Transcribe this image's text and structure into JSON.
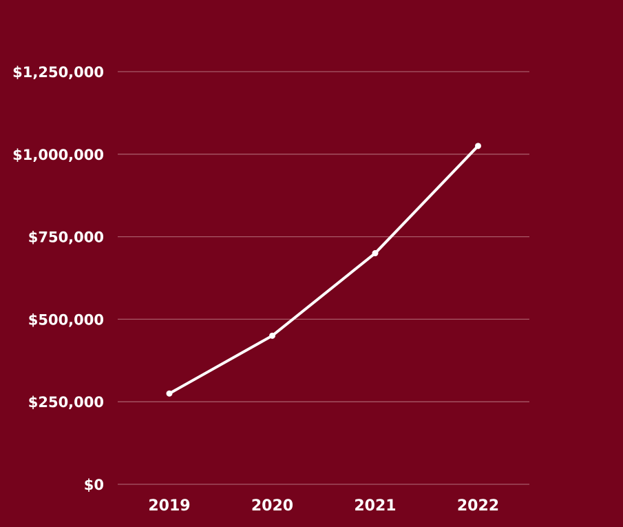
{
  "colors": {
    "background": "#75031c",
    "line": "#ffffff",
    "gridline": "#a85a68",
    "text": "#ffffff"
  },
  "chart_data": {
    "type": "line",
    "title": "",
    "xlabel": "",
    "ylabel": "",
    "categories": [
      "2019",
      "2020",
      "2021",
      "2022"
    ],
    "series": [
      {
        "values": [
          275000,
          450000,
          700000,
          1025000
        ]
      }
    ],
    "ylim": [
      0,
      1250000
    ],
    "yticks": [
      0,
      250000,
      500000,
      750000,
      1000000,
      1250000
    ],
    "ytick_labels": [
      "$0",
      "$250,000",
      "$500,000",
      "$750,000",
      "$1,000,000",
      "$1,250,000"
    ],
    "grid": true,
    "legend": "none",
    "markers": true
  }
}
